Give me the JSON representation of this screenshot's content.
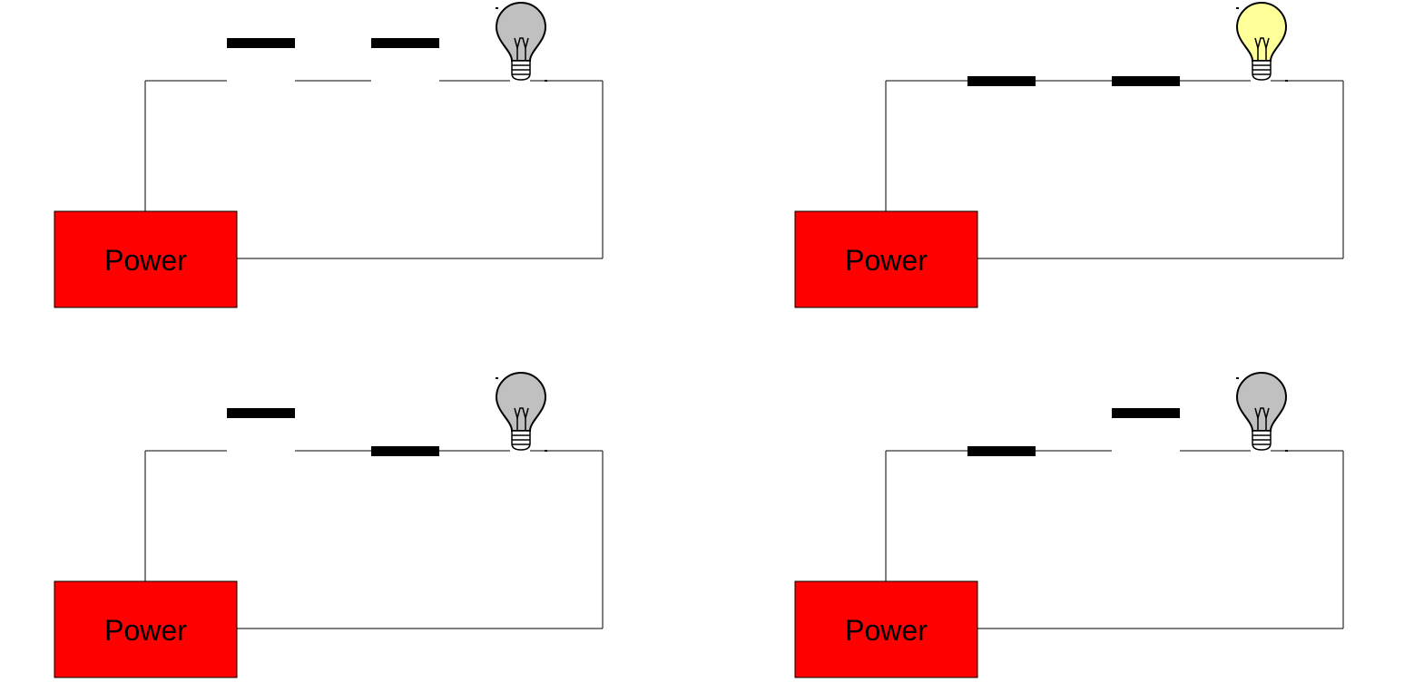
{
  "colors": {
    "wire": "#000000",
    "switch": "#000000",
    "power_fill": "#ff0000",
    "bulb_off": "#c0c0c0",
    "bulb_on": "#ffff99",
    "background": "#ffffff"
  },
  "circuits": [
    {
      "power_label": "Power",
      "switches": [
        {
          "state": "open"
        },
        {
          "state": "open"
        }
      ],
      "bulb": {
        "state": "off"
      }
    },
    {
      "power_label": "Power",
      "switches": [
        {
          "state": "closed"
        },
        {
          "state": "closed"
        }
      ],
      "bulb": {
        "state": "on"
      }
    },
    {
      "power_label": "Power",
      "switches": [
        {
          "state": "open"
        },
        {
          "state": "closed"
        }
      ],
      "bulb": {
        "state": "off"
      }
    },
    {
      "power_label": "Power",
      "switches": [
        {
          "state": "closed"
        },
        {
          "state": "open"
        }
      ],
      "bulb": {
        "state": "off"
      }
    }
  ]
}
